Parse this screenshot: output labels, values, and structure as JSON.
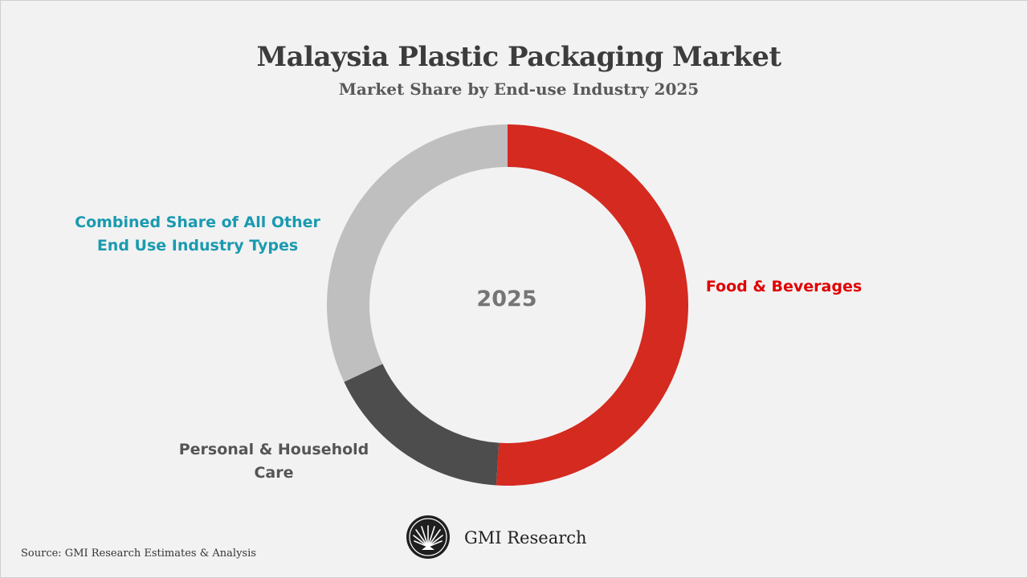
{
  "chart_data": {
    "type": "pie",
    "title": "Malaysia Plastic Packaging Market",
    "subtitle": "Market Share by End-use Industry 2025",
    "center_label": "2025",
    "donut": true,
    "slices": [
      {
        "label": "Food & Beverages",
        "value": 51,
        "color": "#d42a20",
        "label_color": "#e00000"
      },
      {
        "label": "Personal & Household Care",
        "value": 17,
        "color": "#4d4d4d",
        "label_color": "#555555"
      },
      {
        "label": "Combined Share of All Other End Use Industry Types",
        "value": 32,
        "color": "#bfbfbf",
        "label_color": "#1a9ab0"
      }
    ],
    "source": "Source: GMI Research Estimates & Analysis"
  },
  "brand": {
    "name": "GMI Research",
    "logo_icon": "gmi-fan-logo-icon"
  },
  "labels": {
    "food": "Food & Beverages",
    "other_line1": "Combined Share of All Other",
    "other_line2": "End Use Industry Types",
    "personal_line1": "Personal & Household",
    "personal_line2": "Care"
  }
}
